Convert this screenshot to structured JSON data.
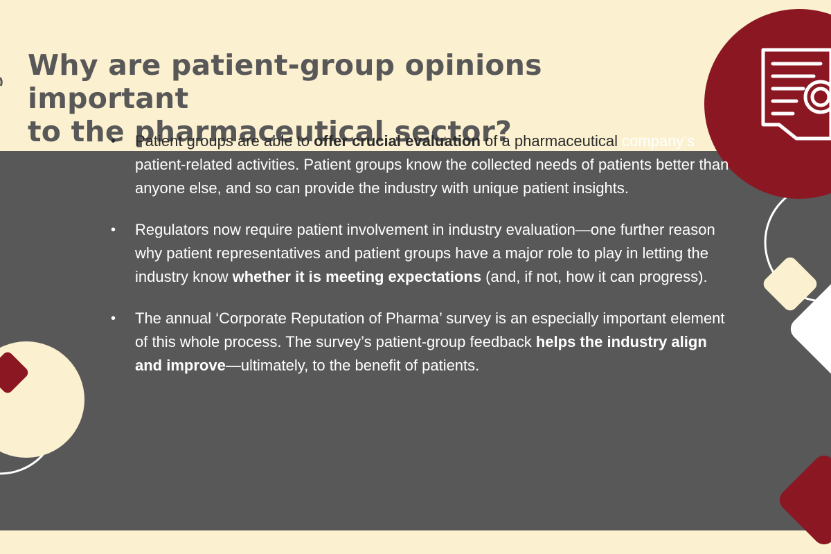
{
  "title": {
    "line1": "Why are patient-group opinions important",
    "line2": "to the pharmaceutical sector?"
  },
  "bullets": [
    {
      "marker": "•",
      "lead_before": "Patient groups are able to ",
      "lead_bold": "offer crucial evaluation",
      "lead_after": " of a pharmaceutical",
      "rest": "company’s patient-related activities. Patient groups know the collected needs of patients better than anyone else, and so can provide the industry with unique patient insights."
    },
    {
      "marker": "•",
      "before": "Regulators now require patient involvement in industry evaluation—one further reason why patient representatives and patient groups have a major role to play in letting the industry know ",
      "bold": "whether it is meeting expectations",
      "after": " (and, if not, how it can progress)."
    },
    {
      "marker": "•",
      "before": "The annual ‘Corporate Reputation of Pharma’ survey is an especially important element of this whole process. The survey’s patient-group feedback ",
      "bold": "helps the industry align and improve",
      "after": "—ultimately, to the benefit of patients."
    }
  ],
  "decorations": {
    "top_right_icon": "document-icon",
    "colors": {
      "cream": "#fbf1d0",
      "gray": "#595858",
      "maroon": "#8b1722",
      "title_text": "#595858",
      "white": "#ffffff"
    }
  }
}
